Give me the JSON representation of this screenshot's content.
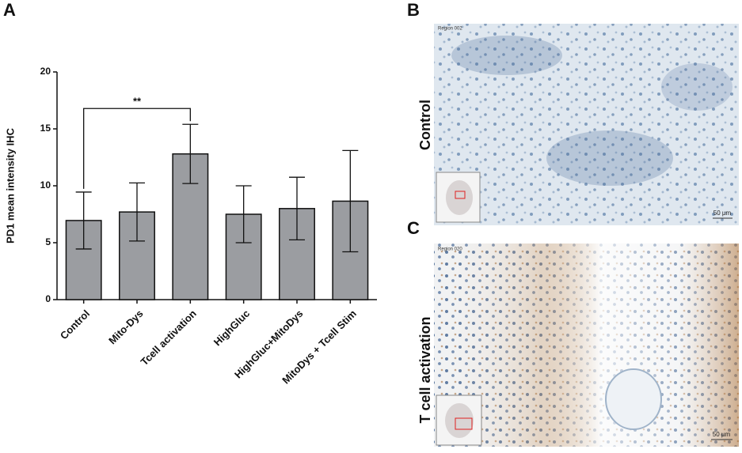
{
  "chart_data": {
    "type": "bar",
    "y_label": "PD1 mean intensity IHC",
    "categories": [
      "Control",
      "Mito-Dys",
      "Tcell activation",
      "HighGluc",
      "HighGluc+MitoDys",
      "MitoDys + Tcell Stim"
    ],
    "values": [
      6.95,
      7.7,
      12.8,
      7.5,
      8.0,
      8.65
    ],
    "errors": [
      2.5,
      2.55,
      2.6,
      2.5,
      2.75,
      4.45
    ],
    "color": "#9b9da1",
    "ylim": [
      0,
      20
    ],
    "yticks": [
      0,
      5,
      10,
      15,
      20
    ],
    "annotation": {
      "text": "**",
      "between": [
        "Control",
        "Tcell activation"
      ]
    }
  },
  "panel_labels": [
    "A",
    "B",
    "C"
  ],
  "images": [
    {
      "label": "Control",
      "region": "Region 002",
      "scale": "50 µm"
    },
    {
      "label": "T cell activation",
      "region": "Region 020",
      "scale": "50 µm"
    }
  ]
}
